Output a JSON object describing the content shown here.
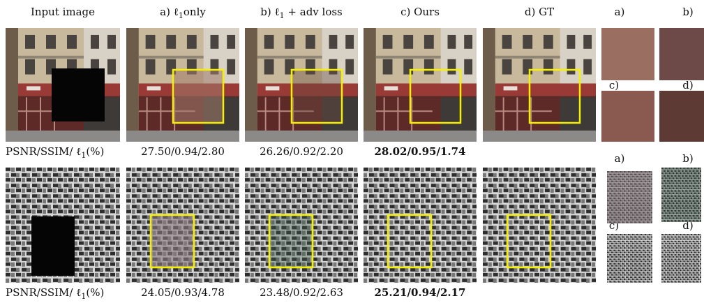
{
  "columns": [
    {
      "text": "Input image"
    },
    {
      "pre": "a) ℓ",
      "sub": "1",
      "post": "only"
    },
    {
      "pre": "b) ℓ",
      "sub": "1",
      "post": " + adv loss"
    },
    {
      "text": "c) Ours"
    },
    {
      "text": "d) GT"
    }
  ],
  "crop_labels": [
    "a)",
    "b)",
    "c)",
    "d)"
  ],
  "rows": [
    {
      "label": {
        "pre": "PSNR/SSIM/ ℓ",
        "sub": "1",
        "post": "(%)"
      },
      "metrics": [
        "27.50/0.94/2.80",
        "26.26/0.92/2.20",
        "28.02/0.95/1.74"
      ]
    },
    {
      "label": {
        "pre": "PSNR/SSIM/ ℓ",
        "sub": "1",
        "post": "(%)"
      },
      "metrics": [
        "24.05/0.93/4.78",
        "23.48/0.92/2.63",
        "25.21/0.94/2.17"
      ]
    }
  ]
}
